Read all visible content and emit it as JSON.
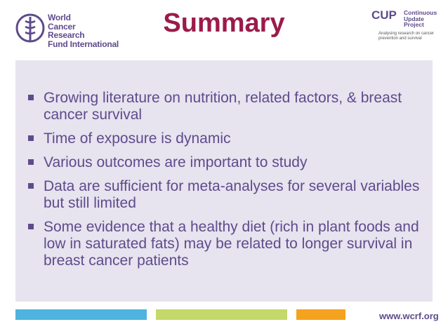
{
  "slide": {
    "title": "Summary",
    "bullets": [
      "Growing literature on nutrition, related factors, & breast cancer survival",
      "Time of exposure is dynamic",
      "Various outcomes are important to study",
      "Data are sufficient for meta-analyses for several variables but still limited",
      "Some evidence that a healthy diet (rich in plant foods and low in saturated fats) may be related to longer survival in breast cancer patients"
    ],
    "url": "www.wcrf.org"
  },
  "logo_left": {
    "line1": "World",
    "line2": "Cancer",
    "line3": "Research",
    "line4": "Fund International"
  },
  "logo_right": {
    "cup": "CUP",
    "line1": "Continuous",
    "line2": "Update",
    "line3": "Project",
    "tagline": "Analysing research on cancer prevention and survival"
  },
  "colors": {
    "title": "#9b1b4a",
    "text": "#5e4b8b",
    "box": "#e7e3ef",
    "bar_blue": "#4fb3e0",
    "bar_green": "#c4d96a",
    "bar_orange": "#f5a21f"
  }
}
